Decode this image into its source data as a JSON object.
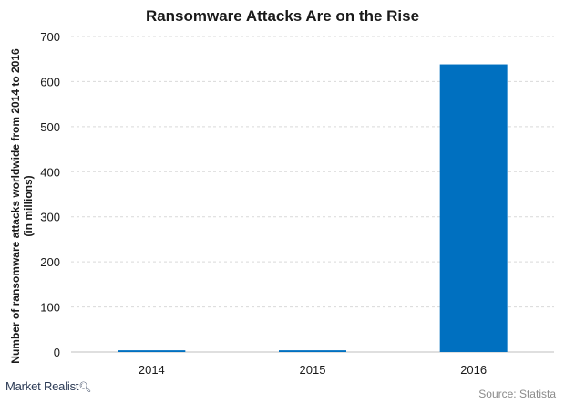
{
  "chart_data": {
    "type": "bar",
    "title": "Ransomware Attacks Are on the Rise",
    "ylabel_lines": [
      "Number of ransomware attacks worldwide from 2014 to 2016",
      "(in millions)"
    ],
    "xlabel": "",
    "categories": [
      "2014",
      "2015",
      "2016"
    ],
    "values": [
      3.8,
      3.8,
      638.2
    ],
    "ylim": [
      0,
      700
    ],
    "yticks": [
      0,
      100,
      200,
      300,
      400,
      500,
      600,
      700
    ],
    "grid": true,
    "bar_color": "#0070c0",
    "grid_color": "#d9d9d9"
  },
  "footer": {
    "brand": "Market Realist",
    "brand_icon": "magnifier-icon",
    "source": "Source: Statista"
  }
}
